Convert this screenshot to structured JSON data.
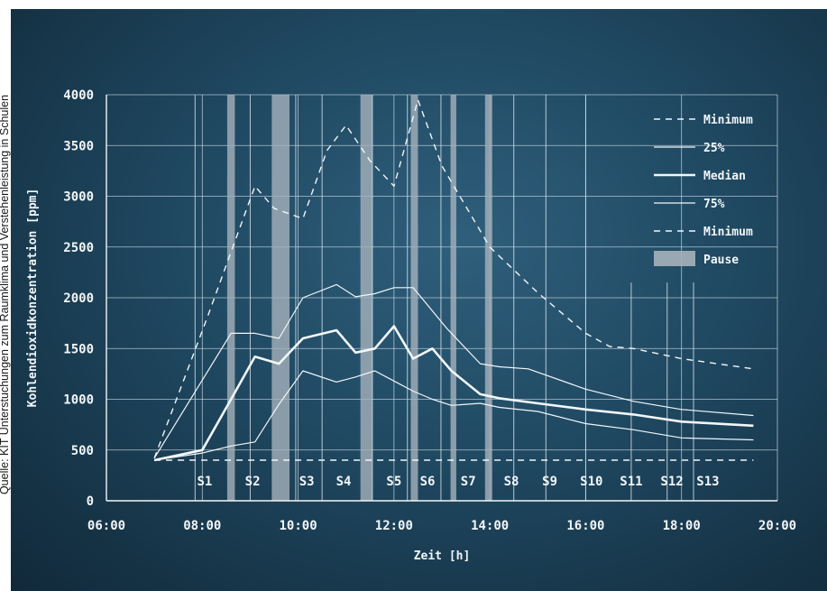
{
  "credit": "Quelle: KIT Unterstuchungen zum Raumklima und Verstehenleistung in Schulen",
  "colors": {
    "line": "#f2f6f8",
    "grid": "#c8d6df",
    "pause": "#a6b2bb",
    "panel": "#1f4861"
  },
  "chart_data": {
    "type": "line",
    "xlabel": "Zeit [h]",
    "ylabel": "Kohlendioxidkonzentration [ppm]",
    "x_ticks": [
      "06:00",
      "08:00",
      "10:00",
      "12:00",
      "14:00",
      "16:00",
      "18:00",
      "20:00"
    ],
    "y_ticks": [
      "0",
      "500",
      "1000",
      "1500",
      "2000",
      "2500",
      "3000",
      "3500",
      "4000"
    ],
    "xlim_hours": [
      6,
      20
    ],
    "ylim": [
      0,
      4000
    ],
    "grid": true,
    "legend_position": "top-right",
    "legend": [
      {
        "label": "Minimum",
        "style": "dashed"
      },
      {
        "label": "25%",
        "style": "thin"
      },
      {
        "label": "Median",
        "style": "thick"
      },
      {
        "label": "75%",
        "style": "thin"
      },
      {
        "label": "Minimum",
        "style": "dashed"
      },
      {
        "label": "Pause",
        "style": "box"
      }
    ],
    "series": [
      {
        "style": "dashed",
        "x": [
          7,
          8.1,
          9.1,
          9.5,
          10.1,
          10.6,
          11.0,
          11.5,
          12.0,
          12.5,
          13.0,
          14.0,
          15.0,
          16.0,
          16.5,
          17.0,
          18.0,
          19.5
        ],
        "y": [
          420,
          1800,
          3100,
          2880,
          2780,
          3450,
          3700,
          3350,
          3100,
          3950,
          3300,
          2500,
          2050,
          1650,
          1520,
          1500,
          1400,
          1300
        ]
      },
      {
        "style": "thin",
        "x": [
          7,
          8.6,
          9.1,
          9.6,
          10.1,
          10.8,
          11.2,
          11.6,
          12.0,
          12.4,
          13.1,
          13.8,
          14.2,
          14.8,
          16.0,
          17.0,
          18.0,
          19.5
        ],
        "y": [
          420,
          1650,
          1650,
          1600,
          2000,
          2130,
          2010,
          2040,
          2100,
          2100,
          1700,
          1350,
          1320,
          1300,
          1100,
          980,
          900,
          840
        ]
      },
      {
        "style": "thick",
        "x": [
          7,
          8.0,
          8.6,
          9.1,
          9.6,
          10.1,
          10.8,
          11.2,
          11.6,
          12.0,
          12.4,
          12.8,
          13.2,
          13.8,
          14.2,
          15.0,
          16.0,
          17.0,
          18.0,
          19.5
        ],
        "y": [
          400,
          500,
          1000,
          1420,
          1350,
          1600,
          1680,
          1460,
          1500,
          1720,
          1400,
          1500,
          1280,
          1050,
          1010,
          960,
          900,
          850,
          780,
          740
        ]
      },
      {
        "style": "thin",
        "x": [
          7,
          8.0,
          8.6,
          9.1,
          9.6,
          10.1,
          10.8,
          11.2,
          11.6,
          12.0,
          12.4,
          12.8,
          13.2,
          13.8,
          14.2,
          15.0,
          16.0,
          17.0,
          18.0,
          19.5
        ],
        "y": [
          400,
          470,
          540,
          580,
          950,
          1280,
          1170,
          1220,
          1280,
          1180,
          1080,
          1000,
          940,
          960,
          920,
          880,
          760,
          700,
          620,
          600
        ]
      },
      {
        "style": "dashed",
        "x": [
          7,
          19.5
        ],
        "y": [
          400,
          400
        ]
      }
    ],
    "pauses_hours": [
      [
        8.52,
        8.68
      ],
      [
        9.45,
        9.82
      ],
      [
        11.3,
        11.55
      ],
      [
        12.35,
        12.5
      ],
      [
        13.18,
        13.3
      ],
      [
        13.9,
        14.05
      ]
    ],
    "session_dividers_hours": [
      7.85,
      9.0,
      9.95,
      10.5,
      11.55,
      12.28,
      12.98,
      14.5,
      15.17,
      16.0,
      16.95,
      17.7,
      18.25
    ],
    "short_dividers_hours": [
      16.95,
      17.7,
      18.25
    ],
    "sessions": [
      {
        "label": "S1",
        "at": 8.05
      },
      {
        "label": "S2",
        "at": 9.05
      },
      {
        "label": "S3",
        "at": 10.18
      },
      {
        "label": "S4",
        "at": 10.95
      },
      {
        "label": "S5",
        "at": 12.0
      },
      {
        "label": "S6",
        "at": 12.7
      },
      {
        "label": "S7",
        "at": 13.55
      },
      {
        "label": "S8",
        "at": 14.45
      },
      {
        "label": "S9",
        "at": 15.25
      },
      {
        "label": "S10",
        "at": 16.12
      },
      {
        "label": "S11",
        "at": 16.95
      },
      {
        "label": "S12",
        "at": 17.8
      },
      {
        "label": "S13",
        "at": 18.55
      }
    ]
  }
}
